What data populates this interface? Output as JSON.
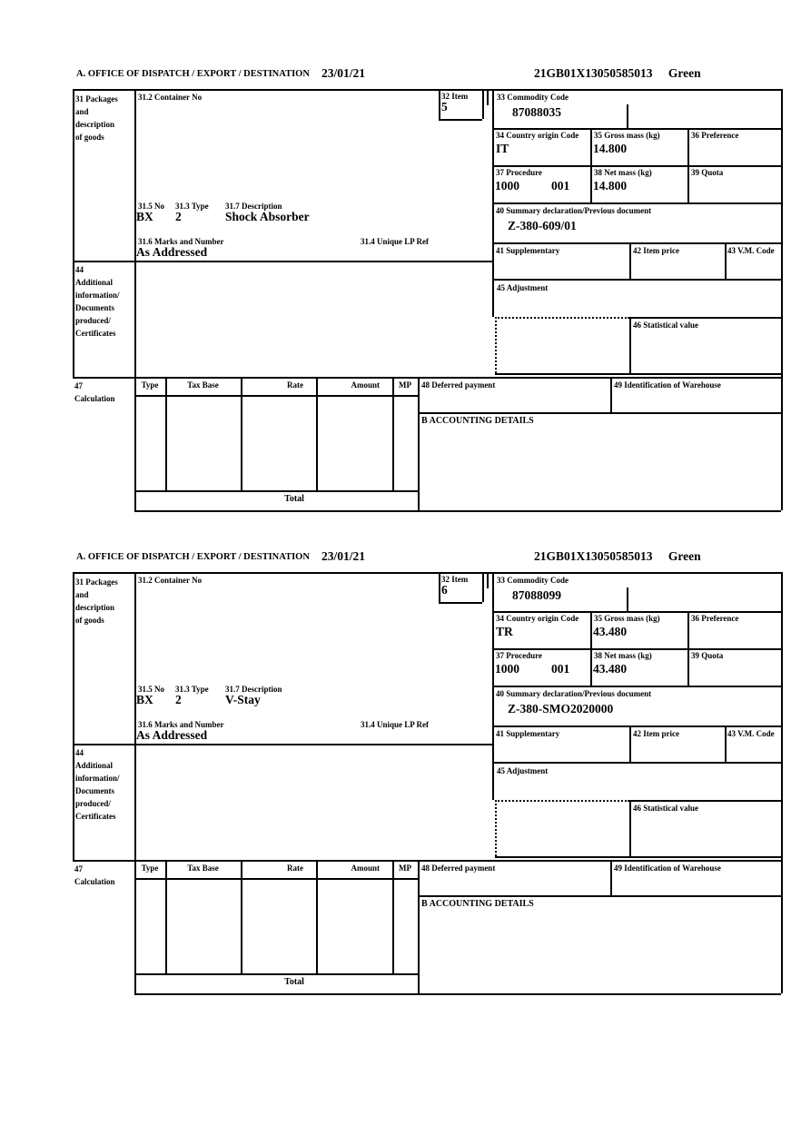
{
  "form": {
    "labels": {
      "office": "A. OFFICE OF DISPATCH / EXPORT / DESTINATION",
      "box31_lines": [
        "31 Packages",
        "and",
        "description",
        "of goods"
      ],
      "box31_2": "31.2 Container No",
      "box31_5": "31.5 No",
      "box31_3": "31.3 Type",
      "box31_7": "31.7 Description",
      "box31_6": "31.6 Marks and Number",
      "box31_4": "31.4 Unique LP Ref",
      "box32": "32 Item",
      "box33": "33 Commodity Code",
      "box34": "34 Country origin Code",
      "box35": "35 Gross mass (kg)",
      "box36": "36 Preference",
      "box37": "37 Procedure",
      "box38": "38 Net mass (kg)",
      "box39": "39 Quota",
      "box40": "40 Summary declaration/Previous document",
      "box41": "41 Supplementary",
      "box42": "42 Item price",
      "box43": "43 V.M. Code",
      "box44_lines": [
        "44",
        "Additional",
        "information/",
        "Documents",
        "produced/",
        "Certificates"
      ],
      "box45": "45 Adjustment",
      "box46": "46 Statistical value",
      "box47_lines": [
        "47",
        "Calculation"
      ],
      "calc_cols": [
        "Type",
        "Tax Base",
        "Rate",
        "Amount",
        "MP"
      ],
      "box48": "48 Deferred payment",
      "box49": "49 Identification of Warehouse",
      "accounting": "B ACCOUNTING DETAILS",
      "total": "Total"
    },
    "sections": [
      {
        "date": "23/01/21",
        "mrn": "21GB01X13050585013",
        "routing": "Green",
        "item_no": "5",
        "commodity_code": "87088035",
        "country_origin": "IT",
        "gross_mass": "14.800",
        "procedure": "1000",
        "procedure_ext": "001",
        "net_mass": "14.800",
        "previous_document": "Z-380-609/01",
        "packages_no": "BX",
        "packages_type": "2",
        "description": "Shock Absorber",
        "marks": "As Addressed"
      },
      {
        "date": "23/01/21",
        "mrn": "21GB01X13050585013",
        "routing": "Green",
        "item_no": "6",
        "commodity_code": "87088099",
        "country_origin": "TR",
        "gross_mass": "43.480",
        "procedure": "1000",
        "procedure_ext": "001",
        "net_mass": "43.480",
        "previous_document": "Z-380-SMO2020000",
        "packages_no": "BX",
        "packages_type": "2",
        "description": "V-Stay",
        "marks": "As Addressed"
      }
    ]
  }
}
